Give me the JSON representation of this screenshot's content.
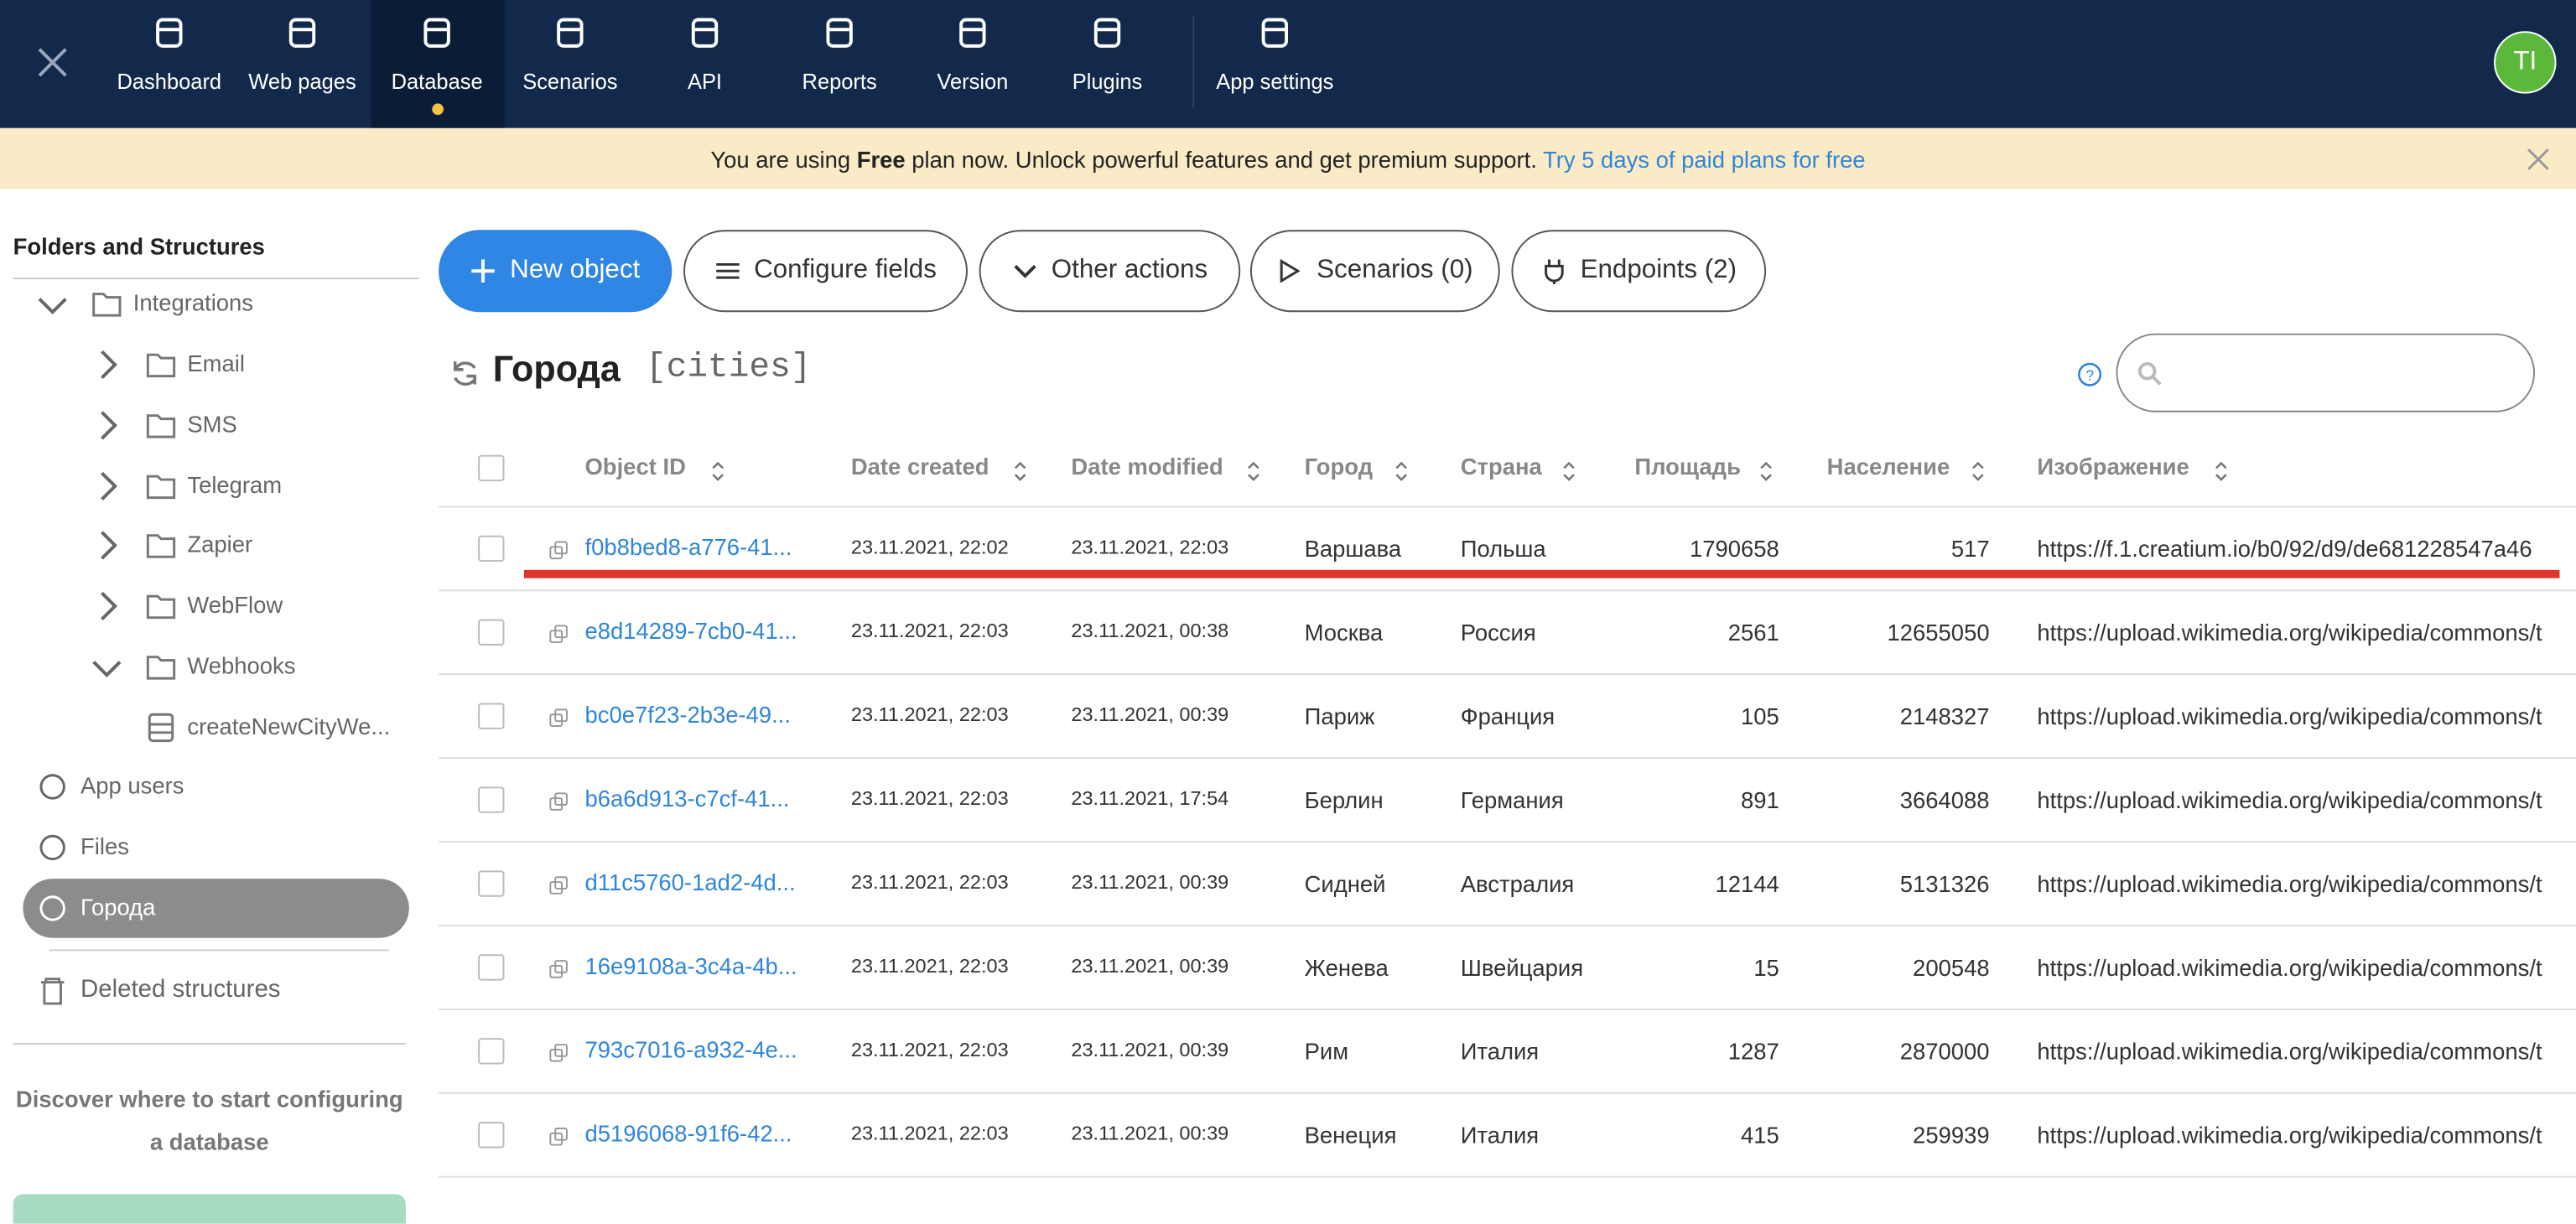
{
  "nav": {
    "items": [
      "Dashboard",
      "Web pages",
      "Database",
      "Scenarios",
      "API",
      "Reports",
      "Version",
      "Plugins",
      "App settings"
    ],
    "avatar": "TI"
  },
  "banner": {
    "prefix": "You are using",
    "plan": "Free",
    "suffix": "plan now. Unlock powerful features and get premium support.",
    "link": "Try 5 days of paid plans for free"
  },
  "sidebar": {
    "heading": "Folders and Structures",
    "tree": [
      "Integrations",
      "Email",
      "SMS",
      "Telegram",
      "Zapier",
      "WebFlow",
      "Webhooks",
      "createNewCityWe..."
    ],
    "links": [
      "App users",
      "Files",
      "Города"
    ],
    "deleted": "Deleted structures",
    "hint": "Discover where to start configuring a database"
  },
  "toolbar": [
    "New object",
    "Configure fields",
    "Other actions",
    "Scenarios (0)",
    "Endpoints (2)"
  ],
  "structure": {
    "title": "Города",
    "key": "[cities]"
  },
  "table": {
    "headers": [
      "Object ID",
      "Date created",
      "Date modified",
      "Город",
      "Страна",
      "Площадь",
      "Население",
      "Изображение"
    ],
    "rows": [
      [
        "f0b8bed8-a776-41...",
        "23.11.2021, 22:02",
        "23.11.2021, 22:03",
        "Варшава",
        "Польша",
        1790658,
        517,
        "https://f.1.creatium.io/b0/92/d9/de681228547a46"
      ],
      [
        "e8d14289-7cb0-41...",
        "23.11.2021, 22:03",
        "23.11.2021, 00:38",
        "Москва",
        "Россия",
        2561,
        12655050,
        "https://upload.wikimedia.org/wikipedia/commons/t"
      ],
      [
        "bc0e7f23-2b3e-49...",
        "23.11.2021, 22:03",
        "23.11.2021, 00:39",
        "Париж",
        "Франция",
        105,
        2148327,
        "https://upload.wikimedia.org/wikipedia/commons/t"
      ],
      [
        "b6a6d913-c7cf-41...",
        "23.11.2021, 22:03",
        "23.11.2021, 17:54",
        "Берлин",
        "Германия",
        891,
        3664088,
        "https://upload.wikimedia.org/wikipedia/commons/t"
      ],
      [
        "d11c5760-1ad2-4d...",
        "23.11.2021, 22:03",
        "23.11.2021, 00:39",
        "Сидней",
        "Австралия",
        12144,
        5131326,
        "https://upload.wikimedia.org/wikipedia/commons/t"
      ],
      [
        "16e9108a-3c4a-4b...",
        "23.11.2021, 22:03",
        "23.11.2021, 00:39",
        "Женева",
        "Швейцария",
        15,
        200548,
        "https://upload.wikimedia.org/wikipedia/commons/t"
      ],
      [
        "793c7016-a932-4e...",
        "23.11.2021, 22:03",
        "23.11.2021, 00:39",
        "Рим",
        "Италия",
        1287,
        2870000,
        "https://upload.wikimedia.org/wikipedia/commons/t"
      ],
      [
        "d5196068-91f6-42...",
        "23.11.2021, 22:03",
        "23.11.2021, 00:39",
        "Венеция",
        "Италия",
        415,
        259939,
        "https://upload.wikimedia.org/wikipedia/commons/t"
      ]
    ]
  }
}
